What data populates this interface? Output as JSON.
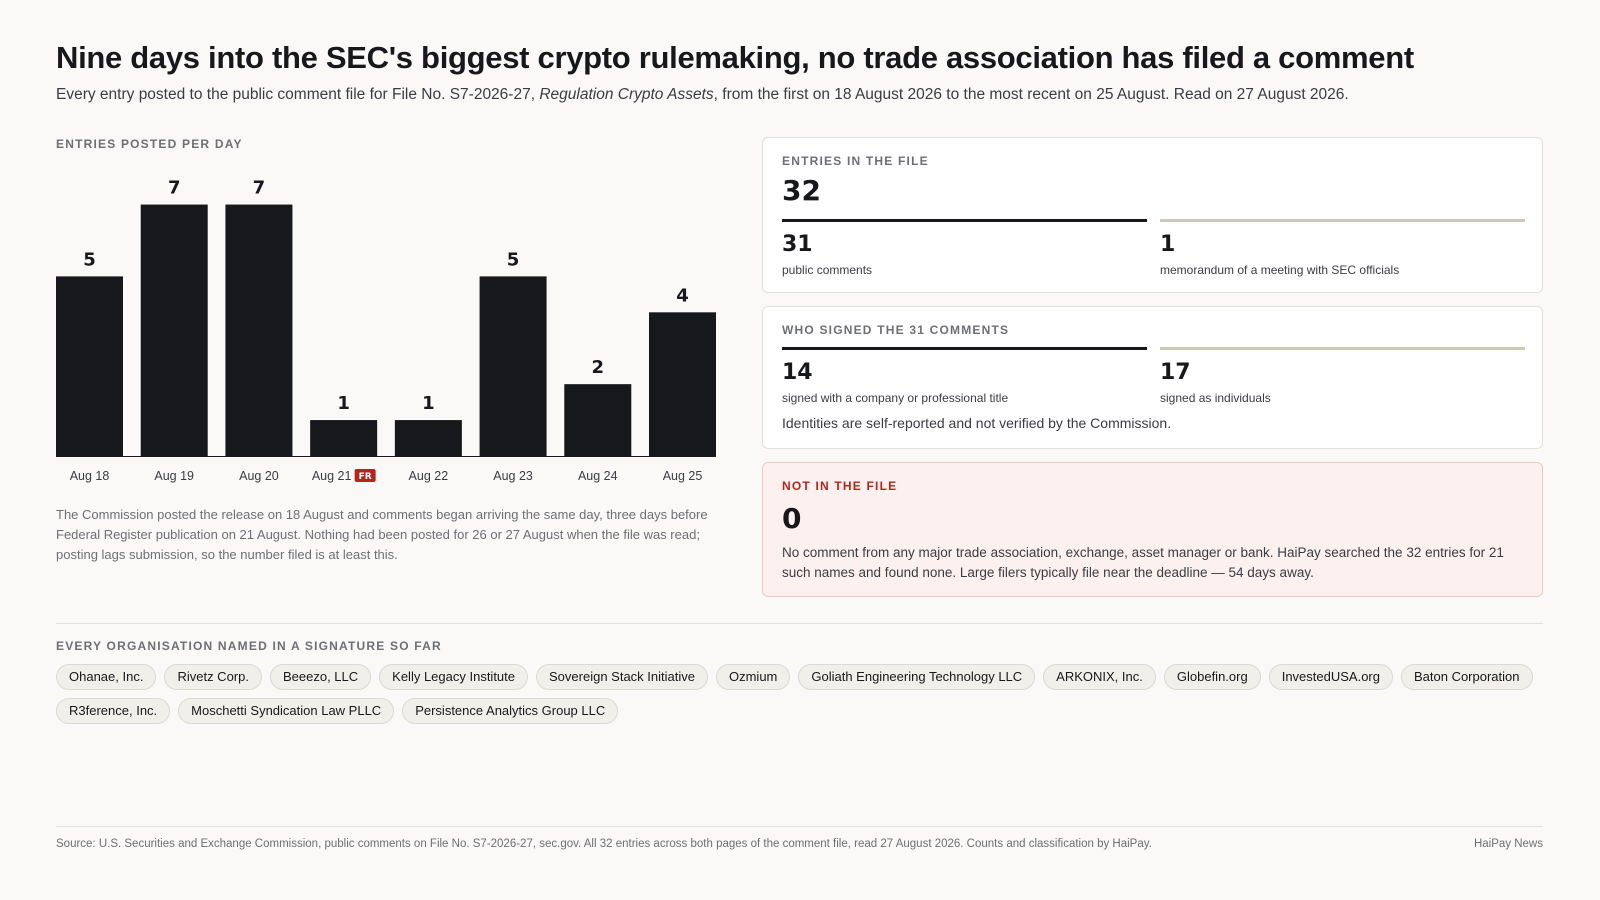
{
  "headline": "Nine days into the SEC's biggest crypto rulemaking, no trade association has filed a comment",
  "dek": {
    "before": "Every entry posted to the public comment file for File No. S7-2026-27, ",
    "italic": "Regulation Crypto Assets",
    "after": ", from the first on 18 August 2026 to the most recent on 25 August. Read on 27 August 2026."
  },
  "chart_label": "ENTRIES POSTED PER DAY",
  "chart_data": {
    "type": "bar",
    "categories": [
      "Aug 18",
      "Aug 19",
      "Aug 20",
      "Aug 21",
      "Aug 22",
      "Aug 23",
      "Aug 24",
      "Aug 25"
    ],
    "values": [
      5,
      7,
      7,
      1,
      1,
      5,
      2,
      4
    ],
    "ylim": [
      0,
      7.6
    ],
    "badge": {
      "category": "Aug 21",
      "text": "FR",
      "color": "#b3261e"
    },
    "bar_color": "#17181c",
    "grid": false
  },
  "chart_note": "The Commission posted the release on 18 August and comments began arriving the same day, three days before Federal Register publication on 21 August. Nothing had been posted for 26 or 27 August when the file was read; posting lags submission, so the number filed is at least this.",
  "entries": {
    "label": "ENTRIES IN THE FILE",
    "total": "32",
    "parts": [
      {
        "num": "31",
        "label": "public comments",
        "color": "#17181c"
      },
      {
        "num": "1",
        "label": "memorandum of a meeting with SEC officials",
        "color": "#cfc6bc"
      }
    ]
  },
  "signers": {
    "label": "WHO SIGNED THE 31 COMMENTS",
    "parts": [
      {
        "num": "14",
        "label": "signed with a company or professional title",
        "color": "#17181c"
      },
      {
        "num": "17",
        "label": "signed as individuals",
        "color": "#c9c9b4"
      }
    ],
    "note": "Identities are self-reported and not verified by the Commission."
  },
  "not_in_file": {
    "label": "NOT IN THE FILE",
    "num": "0",
    "text": "No comment from any major trade association, exchange, asset manager or bank. HaiPay searched the 32 entries for 21 such names and found none. Large filers typically file near the deadline — 54 days away.",
    "accent": "#b3261e"
  },
  "orgs": {
    "label": "EVERY ORGANISATION NAMED IN A SIGNATURE SO FAR",
    "items": [
      "Ohanae, Inc.",
      "Rivetz Corp.",
      "Beeezo, LLC",
      "Kelly Legacy Institute",
      "Sovereign Stack Initiative",
      "Ozmium",
      "Goliath Engineering Technology LLC",
      "ARKONIX, Inc.",
      "Globefin.org",
      "InvestedUSA.org",
      "Baton Corporation",
      "R3ference, Inc.",
      "Moschetti Syndication Law PLLC",
      "Persistence Analytics Group LLC"
    ]
  },
  "source": "Source: U.S. Securities and Exchange Commission, public comments on File No. S7-2026-27, sec.gov. All 32 entries across both pages of the comment file, read 27 August 2026. Counts and classification by HaiPay.",
  "brand": "HaiPay News"
}
